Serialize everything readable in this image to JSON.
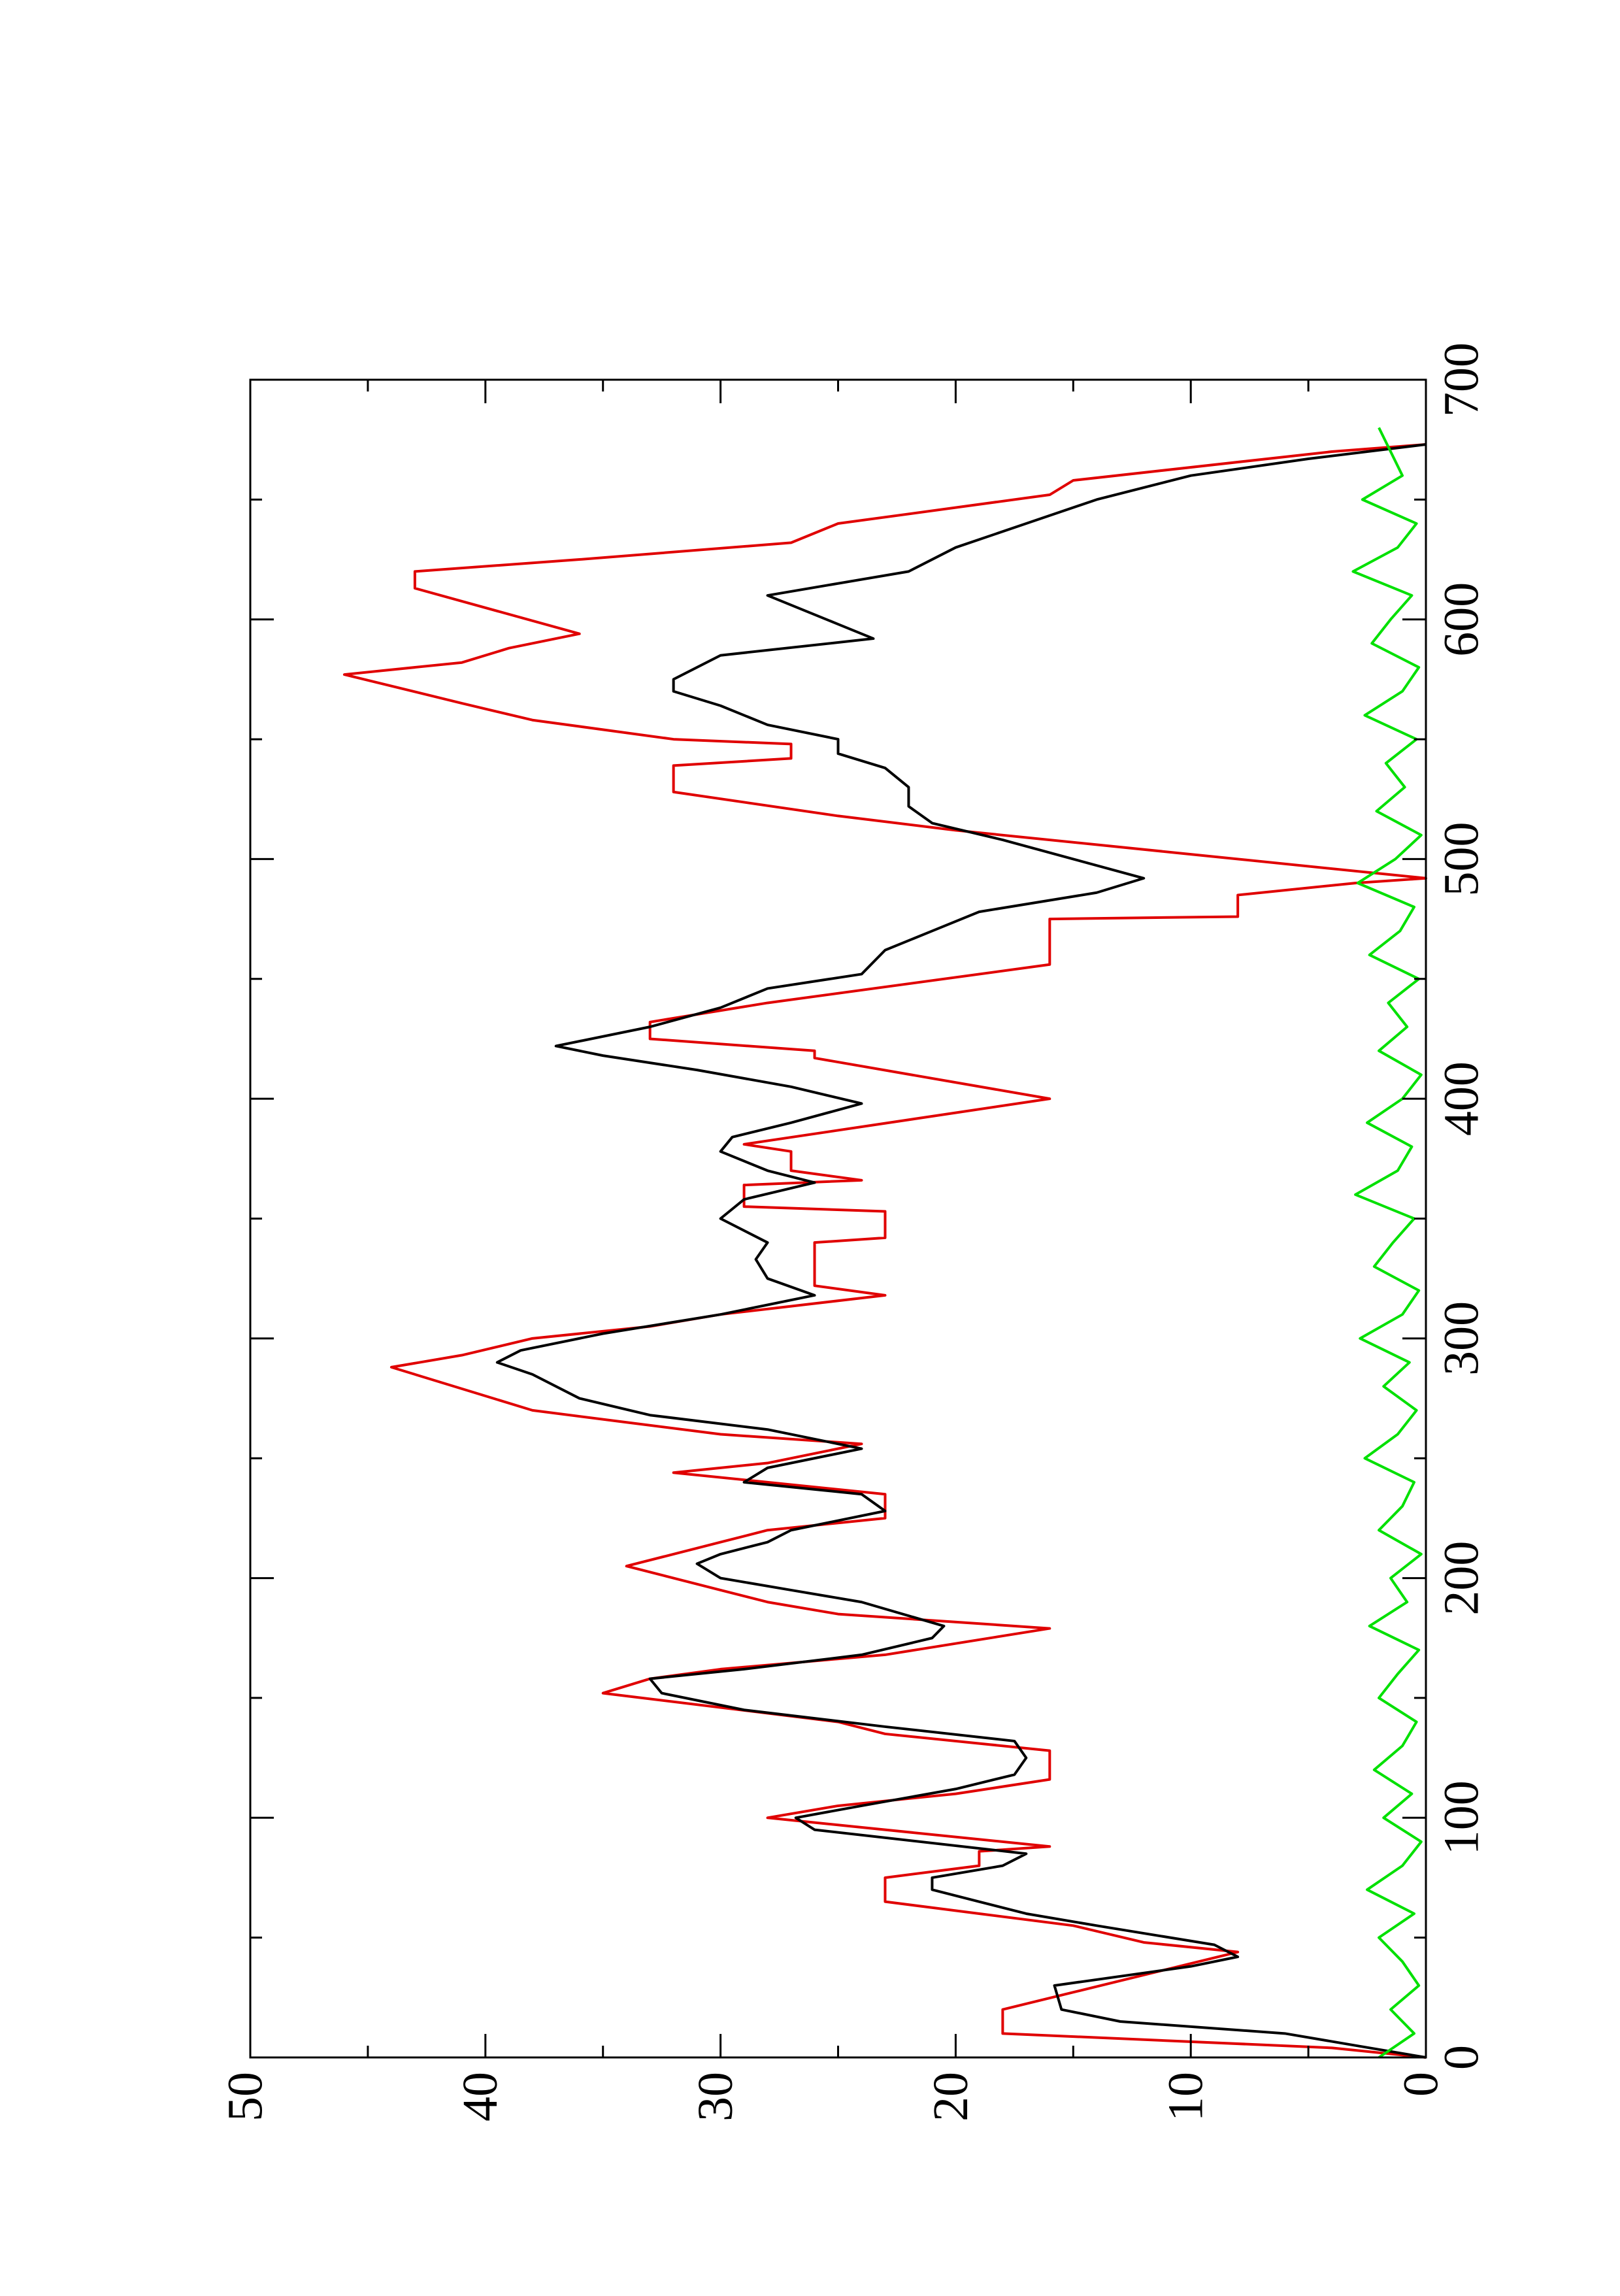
{
  "chart_data": {
    "type": "line",
    "xlim": [
      0,
      700
    ],
    "xticks": [
      0,
      100,
      200,
      300,
      400,
      500,
      600,
      700
    ],
    "ylim": [
      0,
      50
    ],
    "yticks": [
      0,
      10,
      20,
      30,
      40,
      50
    ],
    "series": [
      {
        "color": "#e00000",
        "x": [
          0,
          4,
          10,
          20,
          44,
          48,
          55,
          60,
          65,
          75,
          80,
          86,
          88,
          100,
          105,
          110,
          116,
          128,
          135,
          140,
          152,
          158,
          162,
          168,
          179,
          185,
          190,
          195,
          205,
          210,
          215,
          220,
          225,
          235,
          244,
          248,
          256,
          260,
          265,
          270,
          288,
          293,
          300,
          305,
          310,
          318,
          322,
          326,
          340,
          342,
          353,
          355,
          364,
          366,
          370,
          378,
          381,
          400,
          417,
          420,
          425,
          432,
          440,
          456,
          475,
          476,
          485,
          490,
          492,
          502,
          512,
          518,
          528,
          539,
          542,
          548,
          550,
          558,
          565,
          577,
          582,
          588,
          594,
          613,
          620,
          625,
          632,
          640,
          652,
          658,
          670,
          673
        ],
        "values": [
          0,
          4,
          18,
          18,
          8,
          12,
          15,
          19,
          23,
          23,
          19,
          19,
          16,
          28,
          25,
          20,
          16,
          16,
          23,
          25,
          35,
          33,
          30,
          23,
          16,
          25,
          28,
          30,
          34,
          32,
          30,
          28,
          23,
          23,
          32,
          28,
          24,
          30,
          34,
          38,
          44,
          41,
          38,
          33,
          30,
          23,
          26,
          26,
          26,
          23,
          23,
          29,
          29,
          24,
          27,
          27,
          29,
          16,
          26,
          26,
          33,
          33,
          28,
          16,
          16,
          8,
          8,
          3,
          0,
          10,
          20,
          25,
          32,
          32,
          27,
          27,
          32,
          38,
          41,
          46,
          41,
          39,
          36,
          43,
          43,
          36,
          27,
          25,
          16,
          15,
          4,
          0
        ]
      },
      {
        "color": "#000000",
        "x": [
          0,
          5,
          10,
          15,
          20,
          30,
          38,
          42,
          47,
          55,
          60,
          65,
          70,
          75,
          80,
          85,
          95,
          100,
          105,
          112,
          118,
          125,
          132,
          138,
          145,
          152,
          158,
          162,
          168,
          175,
          180,
          190,
          195,
          200,
          206,
          210,
          215,
          220,
          228,
          235,
          240,
          246,
          254,
          262,
          268,
          275,
          285,
          290,
          295,
          302,
          310,
          318,
          325,
          333,
          340,
          350,
          358,
          365,
          370,
          378,
          384,
          390,
          398,
          405,
          412,
          418,
          422,
          430,
          438,
          446,
          452,
          462,
          470,
          478,
          486,
          492,
          500,
          508,
          515,
          522,
          530,
          538,
          544,
          550,
          556,
          564,
          570,
          575,
          585,
          592,
          598,
          610,
          620,
          630,
          640,
          650,
          660,
          667,
          673
        ],
        "values": [
          0,
          3,
          6,
          13,
          15.5,
          15.8,
          10,
          8,
          9,
          14,
          17,
          19,
          21,
          21,
          18,
          17,
          26,
          26.8,
          24,
          20,
          17.5,
          17,
          17.5,
          23,
          29,
          32.5,
          33,
          29,
          24,
          21,
          20.5,
          24,
          27,
          30,
          31,
          30,
          28,
          27,
          23,
          24,
          29,
          28,
          24,
          28,
          33,
          36,
          38,
          39.5,
          38.5,
          35,
          30,
          26,
          28,
          28.5,
          28,
          30,
          29,
          26,
          28,
          30,
          29.5,
          27,
          24,
          27,
          31,
          35,
          37,
          33,
          30,
          28,
          24,
          23,
          21,
          19,
          14,
          12,
          15,
          18,
          21,
          22,
          22,
          23,
          25,
          25,
          28,
          30,
          32,
          32,
          30,
          23.5,
          25,
          28,
          22,
          20,
          17,
          14,
          10,
          5,
          0
        ]
      },
      {
        "color": "#00e000",
        "x": [
          0,
          10,
          20,
          30,
          40,
          50,
          60,
          70,
          80,
          90,
          100,
          110,
          120,
          130,
          140,
          150,
          160,
          170,
          180,
          190,
          200,
          210,
          220,
          230,
          240,
          250,
          260,
          270,
          280,
          290,
          300,
          310,
          320,
          330,
          340,
          350,
          360,
          370,
          380,
          390,
          400,
          410,
          420,
          430,
          440,
          450,
          460,
          470,
          480,
          490,
          500,
          510,
          520,
          530,
          540,
          550,
          560,
          570,
          580,
          590,
          600,
          610,
          620,
          630,
          640,
          650,
          660,
          670,
          680
        ],
        "values": [
          2,
          0.5,
          1.5,
          0.3,
          1,
          2,
          0.5,
          2.5,
          1,
          0.2,
          1.8,
          0.6,
          2.2,
          1,
          0.4,
          2,
          1.2,
          0.3,
          2.4,
          0.8,
          1.5,
          0.2,
          2,
          1,
          0.5,
          2.6,
          1.2,
          0.4,
          1.8,
          0.7,
          2.8,
          1,
          0.3,
          2.2,
          1.4,
          0.5,
          3,
          1.2,
          0.6,
          2.5,
          1,
          0.2,
          2,
          0.8,
          1.6,
          0.3,
          2.4,
          1.1,
          0.5,
          2.9,
          1.3,
          0.2,
          2.1,
          0.9,
          1.7,
          0.4,
          2.6,
          1,
          0.3,
          2.3,
          1.5,
          0.6,
          3.1,
          1.2,
          0.4,
          2.7,
          1,
          1.5,
          2
        ]
      }
    ]
  }
}
